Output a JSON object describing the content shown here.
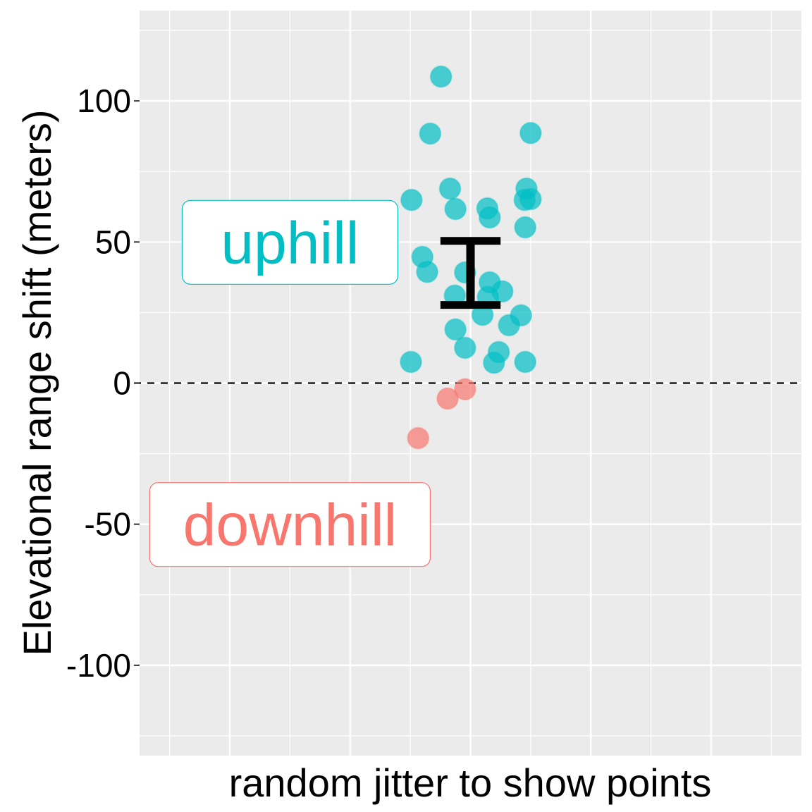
{
  "chart_data": {
    "type": "scatter",
    "title": "",
    "xlabel": "random jitter to show points",
    "ylabel": "Elevational range shift (meters)",
    "ylim": [
      -132,
      132
    ],
    "xlim": [
      -5.5,
      5.5
    ],
    "yticks": [
      100,
      50,
      0,
      -50,
      -100
    ],
    "ytick_labels": [
      "100",
      "50",
      "0",
      "-50",
      "-100"
    ],
    "grid": true,
    "reference_line": {
      "y": 0,
      "style": "dashed"
    },
    "colors": {
      "uphill": "#00BFC4",
      "downhill": "#F8766D",
      "panel": "#EBEBEB"
    },
    "annotations": [
      {
        "text": "uphill",
        "x": -3,
        "y": 50,
        "color": "#00BFC4"
      },
      {
        "text": "downhill",
        "x": -3,
        "y": -50,
        "color": "#F8766D"
      }
    ],
    "error_bar": {
      "x": 0,
      "ymin": 27.7,
      "ymax": 50.4
    },
    "series": [
      {
        "group": "uphill",
        "color": "#00BFC4",
        "points": [
          [
            -0.49,
            108.6
          ],
          [
            -0.67,
            88.4
          ],
          [
            1.0,
            88.6
          ],
          [
            -0.98,
            64.9
          ],
          [
            -0.34,
            68.9
          ],
          [
            -0.25,
            61.7
          ],
          [
            0.28,
            61.9
          ],
          [
            0.32,
            58.7
          ],
          [
            0.93,
            68.9
          ],
          [
            0.9,
            64.9
          ],
          [
            1.0,
            65.2
          ],
          [
            0.91,
            55.2
          ],
          [
            -0.8,
            44.7
          ],
          [
            -0.72,
            39.4
          ],
          [
            -0.09,
            39.2
          ],
          [
            0.32,
            35.7
          ],
          [
            0.53,
            32.5
          ],
          [
            -0.26,
            31.0
          ],
          [
            0.29,
            30.5
          ],
          [
            0.2,
            24.2
          ],
          [
            0.84,
            24.0
          ],
          [
            0.64,
            20.5
          ],
          [
            -0.25,
            19.0
          ],
          [
            -0.09,
            12.5
          ],
          [
            0.47,
            11.0
          ],
          [
            0.39,
            7.2
          ],
          [
            -0.99,
            7.5
          ],
          [
            0.91,
            7.5
          ]
        ]
      },
      {
        "group": "downhill",
        "color": "#F8766D",
        "points": [
          [
            -0.09,
            -2.2
          ],
          [
            -0.38,
            -5.5
          ],
          [
            -0.87,
            -19.5
          ]
        ]
      }
    ]
  }
}
